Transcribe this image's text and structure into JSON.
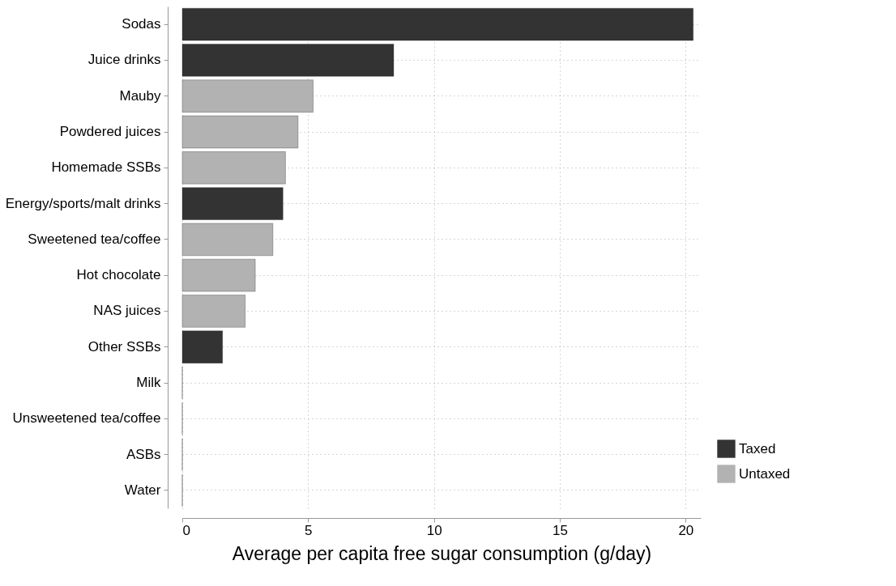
{
  "chart_data": {
    "type": "bar",
    "orientation": "horizontal",
    "xlabel": "Average per capita free sugar consumption (g/day)",
    "categories": [
      "Sodas",
      "Juice drinks",
      "Mauby",
      "Powdered juices",
      "Homemade SSBs",
      "Energy/sports/malt drinks",
      "Sweetened tea/coffee",
      "Hot chocolate",
      "NAS juices",
      "Other SSBs",
      "Milk",
      "Unsweetened tea/coffee",
      "ASBs",
      "Water"
    ],
    "series": [
      {
        "name": "Taxed",
        "color": "#333333",
        "values": [
          20.3,
          8.4,
          null,
          null,
          null,
          4.0,
          null,
          null,
          null,
          1.6,
          null,
          null,
          null,
          null
        ]
      },
      {
        "name": "Untaxed",
        "color": "#b2b2b2",
        "values": [
          null,
          null,
          5.2,
          4.6,
          4.1,
          null,
          3.6,
          2.9,
          2.5,
          null,
          0,
          0,
          0,
          0
        ]
      }
    ],
    "xlim": [
      0,
      20.6
    ],
    "xticks": [
      0,
      5,
      10,
      15,
      20
    ],
    "grid": true,
    "legend": "bottom right"
  }
}
